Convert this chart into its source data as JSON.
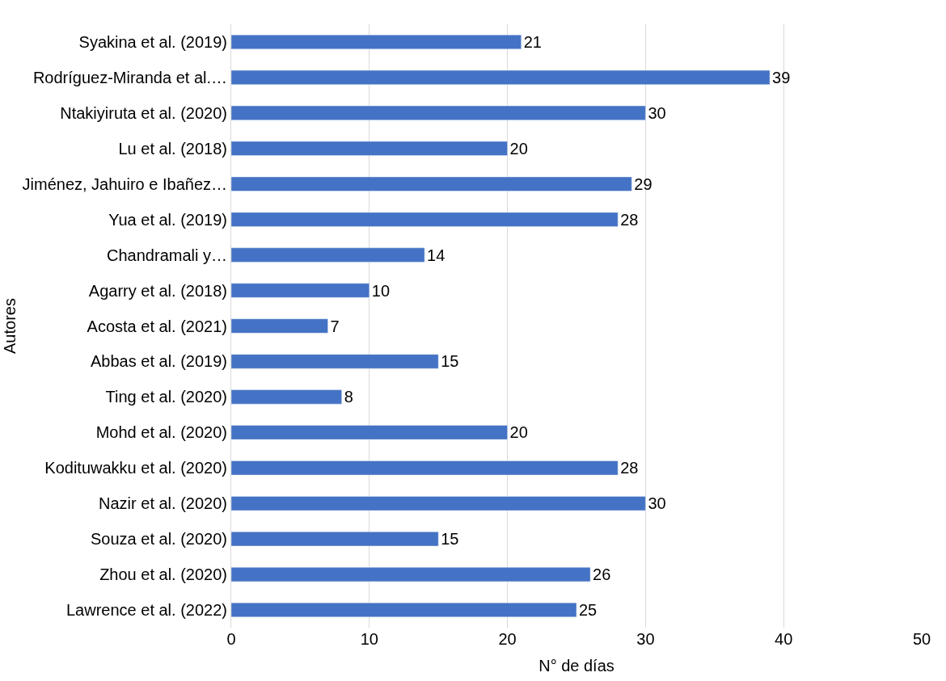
{
  "chart_data": {
    "type": "bar",
    "orientation": "horizontal",
    "xlabel": "N° de días",
    "ylabel": "Autores",
    "categories": [
      "Syakina et al. (2019)",
      "Rodríguez-Miranda et al.…",
      "Ntakiyiruta et al. (2020)",
      "Lu et al. (2018)",
      "Jiménez, Jahuiro e Ibañez…",
      "Yua et al. (2019)",
      "Chandramali y…",
      "Agarry et al. (2018)",
      "Acosta et al. (2021)",
      "Abbas et al. (2019)",
      "Ting et al. (2020)",
      "Mohd et al. (2020)",
      "Kodituwakku et al. (2020)",
      "Nazir et al. (2020)",
      "Souza et al. (2020)",
      "Zhou et al. (2020)",
      "Lawrence et al. (2022)"
    ],
    "values": [
      21,
      39,
      30,
      20,
      29,
      28,
      14,
      10,
      7,
      15,
      8,
      20,
      28,
      30,
      15,
      26,
      25
    ],
    "color": "#4472c4",
    "xlim": [
      0,
      50
    ],
    "xticks": [
      0,
      10,
      20,
      30,
      40,
      50
    ],
    "grid": "x",
    "data_labels": true
  }
}
